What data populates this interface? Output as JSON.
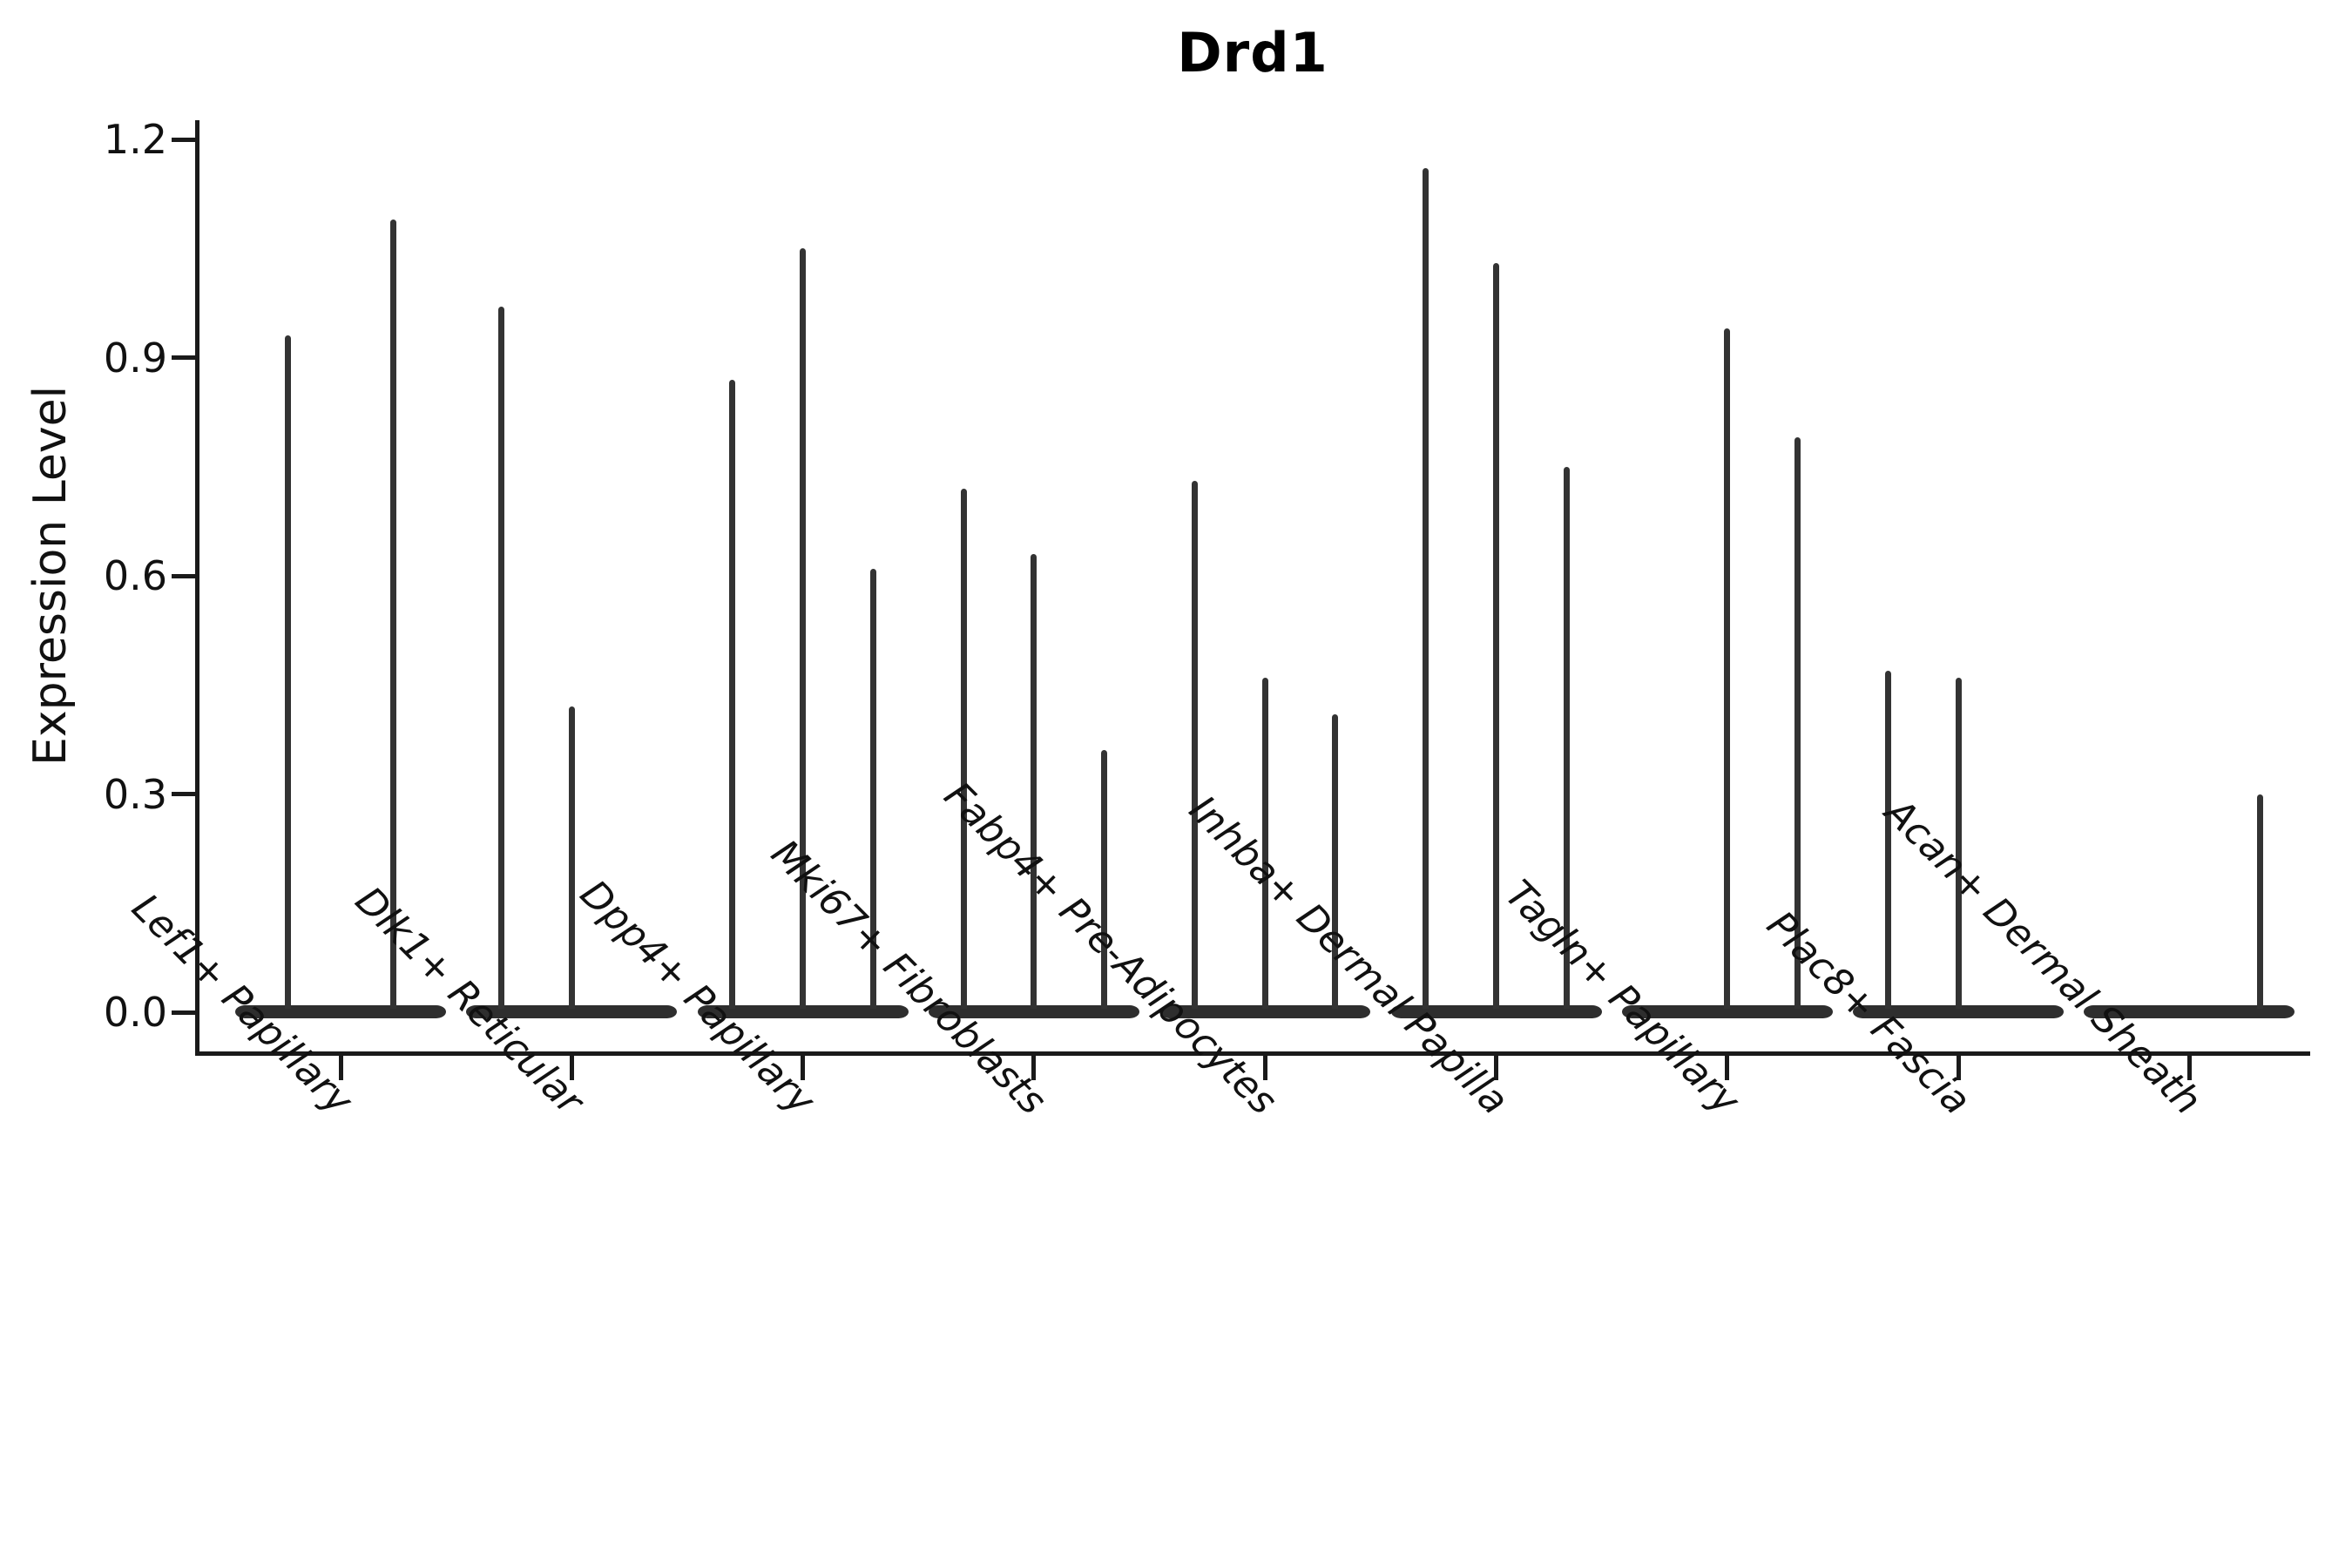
{
  "chart_data": {
    "type": "violin",
    "title": "Drd1",
    "xlabel": "",
    "ylabel": "Expression Level",
    "ylim": [
      0.0,
      1.2
    ],
    "yticks": [
      "0.0",
      "0.3",
      "0.6",
      "0.9",
      "1.2"
    ],
    "ytick_values": [
      0.0,
      0.3,
      0.6,
      0.9,
      1.2
    ],
    "grid": "off",
    "legend": "none",
    "violin_color": "#2e2e2e",
    "note": "Each category shows narrow spike-shaped violins of expression; max expression value per violin listed below, 0 = flat violin at baseline",
    "categories": [
      "Lef1+ Papillary",
      "Dlk1+ Reticular",
      "Dpp4+ Papillary",
      "Mki67+ Fibroblasts",
      "Fabp4+ Pre-Adipocytes",
      "Inhba+ Dermal Papilla",
      "Tagln+ Papillary",
      "Plac8+ Fascia",
      "Acan+ Dermal Sheath"
    ],
    "groups": [
      {
        "category": "Lef1+ Papillary",
        "violins": [
          {
            "slot": 0,
            "of": 2,
            "max": 0.93
          },
          {
            "slot": 1,
            "of": 2,
            "max": 1.09
          }
        ]
      },
      {
        "category": "Dlk1+ Reticular",
        "violins": [
          {
            "slot": 0,
            "of": 3,
            "max": 0.97
          },
          {
            "slot": 1,
            "of": 3,
            "max": 0.42
          },
          {
            "slot": 2,
            "of": 3,
            "max": 0
          }
        ]
      },
      {
        "category": "Dpp4+ Papillary",
        "violins": [
          {
            "slot": 0,
            "of": 3,
            "max": 0.87
          },
          {
            "slot": 1,
            "of": 3,
            "max": 1.05
          },
          {
            "slot": 2,
            "of": 3,
            "max": 0.61
          }
        ]
      },
      {
        "category": "Mki67+ Fibroblasts",
        "violins": [
          {
            "slot": 0,
            "of": 3,
            "max": 0.72
          },
          {
            "slot": 1,
            "of": 3,
            "max": 0.63
          },
          {
            "slot": 2,
            "of": 3,
            "max": 0.36
          }
        ]
      },
      {
        "category": "Fabp4+ Pre-Adipocytes",
        "violins": [
          {
            "slot": 0,
            "of": 3,
            "max": 0.73
          },
          {
            "slot": 1,
            "of": 3,
            "max": 0.46
          },
          {
            "slot": 2,
            "of": 3,
            "max": 0.41
          }
        ]
      },
      {
        "category": "Inhba+ Dermal Papilla",
        "violins": [
          {
            "slot": 0,
            "of": 3,
            "max": 1.16
          },
          {
            "slot": 1,
            "of": 3,
            "max": 1.03
          },
          {
            "slot": 2,
            "of": 3,
            "max": 0.75
          }
        ]
      },
      {
        "category": "Tagln+ Papillary",
        "violins": [
          {
            "slot": 0,
            "of": 3,
            "max": 0
          },
          {
            "slot": 1,
            "of": 3,
            "max": 0.94
          },
          {
            "slot": 2,
            "of": 3,
            "max": 0.79
          }
        ]
      },
      {
        "category": "Plac8+ Fascia",
        "violins": [
          {
            "slot": 0,
            "of": 3,
            "max": 0.47
          },
          {
            "slot": 1,
            "of": 3,
            "max": 0.46
          },
          {
            "slot": 2,
            "of": 3,
            "max": 0
          }
        ]
      },
      {
        "category": "Acan+ Dermal Sheath",
        "violins": [
          {
            "slot": 0,
            "of": 3,
            "max": 0
          },
          {
            "slot": 1,
            "of": 3,
            "max": 0
          },
          {
            "slot": 2,
            "of": 3,
            "max": 0.3
          }
        ]
      }
    ]
  }
}
